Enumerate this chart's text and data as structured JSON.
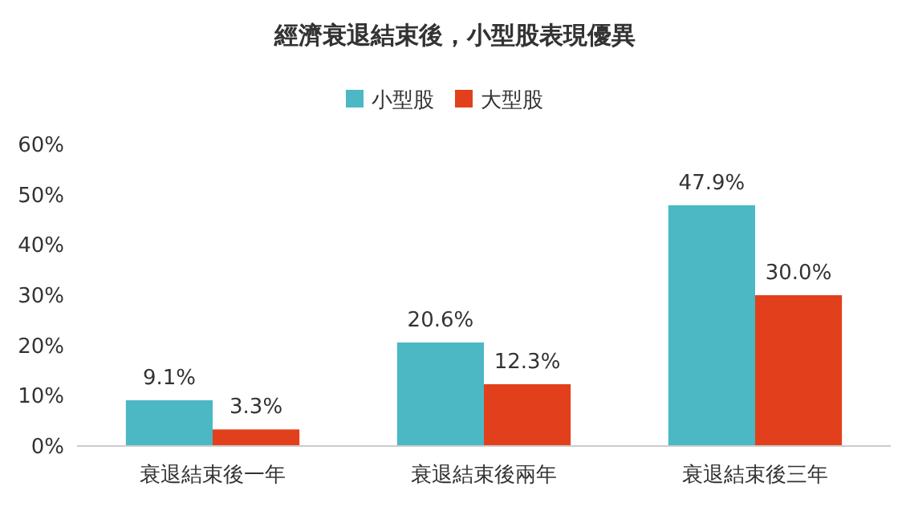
{
  "chart_data": {
    "type": "bar",
    "title": "經濟衰退結束後，小型股表現優異",
    "categories": [
      "衰退結束後一年",
      "衰退結束後兩年",
      "衰退結束後三年"
    ],
    "series": [
      {
        "name": "小型股",
        "color": "#4bb8c4",
        "values": [
          9.1,
          20.6,
          47.9
        ],
        "value_labels": [
          "9.1%",
          "20.6%",
          "47.9%"
        ]
      },
      {
        "name": "大型股",
        "color": "#e2401c",
        "values": [
          3.3,
          12.3,
          30.0
        ],
        "value_labels": [
          "3.3%",
          "12.3%",
          "30.0%"
        ]
      }
    ],
    "ylim": [
      0,
      60
    ],
    "yticks": [
      {
        "value": 0,
        "label": "0%"
      },
      {
        "value": 10,
        "label": "10%"
      },
      {
        "value": 20,
        "label": "20%"
      },
      {
        "value": 30,
        "label": "30%"
      },
      {
        "value": 40,
        "label": "40%"
      },
      {
        "value": 50,
        "label": "50%"
      },
      {
        "value": 60,
        "label": "60%"
      }
    ],
    "grid": false,
    "legend": "top"
  }
}
